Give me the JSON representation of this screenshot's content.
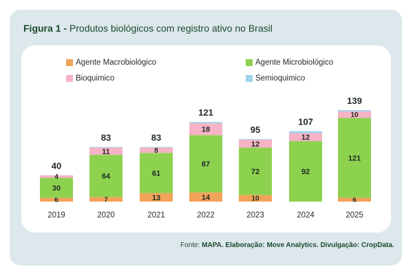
{
  "header": {
    "figure_label": "Figura 1 -",
    "title": "Produtos biológicos com registro ativo no Brasil"
  },
  "footer": {
    "source_label": "Fonte:",
    "source_value": "MAPA.",
    "elaboration_label": "Elaboração:",
    "elaboration_value": "Move Analytics.",
    "dissemination_label": "Divulgação:",
    "dissemination_value": "CropData."
  },
  "legend": [
    {
      "name": "Agente Macrobiológico",
      "color": "#f2a35a"
    },
    {
      "name": "Agente Microbiológico",
      "color": "#8dd24f"
    },
    {
      "name": "Bioquimico",
      "color": "#f6b3c6"
    },
    {
      "name": "Semioquimico",
      "color": "#9fd4ea"
    }
  ],
  "chart_data": {
    "type": "bar",
    "stacked": true,
    "categories": [
      "2019",
      "2020",
      "2021",
      "2022",
      "2023",
      "2024",
      "2025"
    ],
    "series": [
      {
        "name": "Agente Macrobiológico",
        "color": "#f2a35a",
        "values": [
          6,
          7,
          13,
          14,
          10,
          0,
          6
        ]
      },
      {
        "name": "Agente Microbiológico",
        "color": "#8dd24f",
        "values": [
          30,
          64,
          61,
          87,
          72,
          92,
          121
        ]
      },
      {
        "name": "Bioquimico",
        "color": "#f6b3c6",
        "values": [
          4,
          11,
          8,
          18,
          12,
          12,
          10
        ]
      },
      {
        "name": "Semioquimico",
        "color": "#9fd4ea",
        "values": [
          0,
          1,
          1,
          2,
          1,
          3,
          2
        ]
      }
    ],
    "labels": [
      [
        "6",
        "7",
        "13",
        "14",
        "10",
        "",
        "6"
      ],
      [
        "30",
        "64",
        "61",
        "87",
        "72",
        "92",
        "121"
      ],
      [
        "4",
        "11",
        "8",
        "18",
        "12",
        "12",
        "10"
      ],
      [
        "",
        "",
        "",
        "",
        "",
        "",
        ""
      ]
    ],
    "totals": [
      "40",
      "83",
      "83",
      "121",
      "95",
      "107",
      "139"
    ],
    "ylim": [
      0,
      139
    ],
    "grid": false
  }
}
